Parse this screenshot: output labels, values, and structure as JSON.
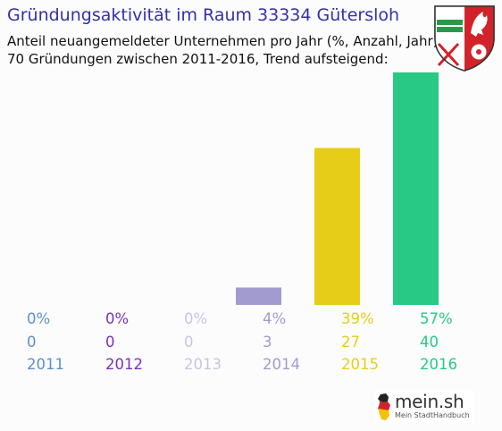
{
  "header": {
    "title": "Gründungsaktivität im Raum 33334 Gütersloh",
    "subtitle_line1": "Anteil neuangemeldeter Unternehmen pro Jahr (%, Anzahl, Jahr)",
    "subtitle_line2": "70 Gründungen zwischen 2011-2016, Trend aufsteigend:"
  },
  "crest": {
    "icon": "nrw-coat-of-arms-icon"
  },
  "logo": {
    "name_main": "mein",
    "name_suffix": ".sh",
    "tagline": "Mein StadtHandbuch"
  },
  "chart_data": {
    "type": "bar",
    "categories": [
      "2011",
      "2012",
      "2013",
      "2014",
      "2015",
      "2016"
    ],
    "percent_labels": [
      "0%",
      "0%",
      "0%",
      "4%",
      "39%",
      "57%"
    ],
    "values": [
      0,
      0,
      0,
      3,
      27,
      40
    ],
    "percent_values": [
      0,
      0,
      0,
      4,
      39,
      57
    ],
    "colors": [
      "#5b8fd0",
      "#7a33b8",
      "#c9c4e6",
      "#a29bcf",
      "#e6cd18",
      "#27c985"
    ],
    "title": "Gründungsaktivität im Raum 33334 Gütersloh",
    "xlabel": "",
    "ylabel": "",
    "grid": false
  }
}
